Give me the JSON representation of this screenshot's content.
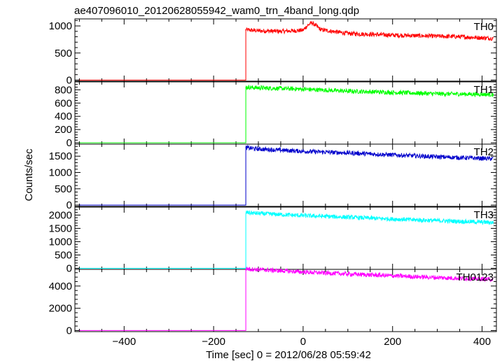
{
  "chart_data": {
    "type": "line",
    "title": "ae407096010_20120628055942_wam0_trn_4band_long.qdp",
    "xlabel": "Time [sec] 0 = 2012/06/28 05:59:42",
    "ylabel": "Counts/sec",
    "xlim": [
      -510,
      432
    ],
    "x_ticks": [
      -400,
      -200,
      0,
      200,
      400
    ],
    "grid": false,
    "onset_time": -128,
    "data_end": 425,
    "panels": [
      {
        "name": "TH0",
        "color": "#ff0000",
        "ylim": [
          -20,
          1130
        ],
        "y_ticks": [
          0,
          500,
          1000
        ],
        "pre_level": 0,
        "points": [
          [
            -510,
            0
          ],
          [
            -129,
            0
          ],
          [
            -128,
            930
          ],
          [
            -100,
            910
          ],
          [
            -50,
            900
          ],
          [
            0,
            920
          ],
          [
            10,
            1010
          ],
          [
            20,
            1060
          ],
          [
            40,
            930
          ],
          [
            100,
            860
          ],
          [
            200,
            830
          ],
          [
            300,
            810
          ],
          [
            350,
            800
          ],
          [
            425,
            770
          ]
        ]
      },
      {
        "name": "TH1",
        "color": "#00ff00",
        "ylim": [
          -20,
          920
        ],
        "y_ticks": [
          0,
          200,
          400,
          600,
          800
        ],
        "pre_level": 0,
        "points": [
          [
            -510,
            0
          ],
          [
            -129,
            0
          ],
          [
            -128,
            840
          ],
          [
            -100,
            830
          ],
          [
            0,
            810
          ],
          [
            100,
            780
          ],
          [
            200,
            760
          ],
          [
            300,
            740
          ],
          [
            425,
            730
          ]
        ]
      },
      {
        "name": "TH2",
        "color": "#0000cc",
        "ylim": [
          -40,
          1870
        ],
        "y_ticks": [
          0,
          500,
          1000,
          1500
        ],
        "pre_level": 0,
        "points": [
          [
            -510,
            0
          ],
          [
            -129,
            0
          ],
          [
            -128,
            1760
          ],
          [
            -100,
            1720
          ],
          [
            0,
            1650
          ],
          [
            100,
            1600
          ],
          [
            200,
            1540
          ],
          [
            300,
            1480
          ],
          [
            425,
            1420
          ]
        ]
      },
      {
        "name": "TH3",
        "color": "#00ffff",
        "ylim": [
          -40,
          2300
        ],
        "y_ticks": [
          0,
          500,
          1000,
          1500,
          2000
        ],
        "pre_level": 0,
        "points": [
          [
            -510,
            0
          ],
          [
            -129,
            0
          ],
          [
            -128,
            2100
          ],
          [
            -100,
            2060
          ],
          [
            0,
            1980
          ],
          [
            100,
            1920
          ],
          [
            200,
            1850
          ],
          [
            300,
            1790
          ],
          [
            425,
            1720
          ]
        ]
      },
      {
        "name": "TH0123",
        "color": "#ff00ff",
        "ylim": [
          -100,
          5500
        ],
        "y_ticks": [
          0,
          2000,
          4000
        ],
        "pre_level": 0,
        "points": [
          [
            -510,
            0
          ],
          [
            -129,
            0
          ],
          [
            -128,
            5550
          ],
          [
            -100,
            5480
          ],
          [
            0,
            5260
          ],
          [
            100,
            5080
          ],
          [
            200,
            4920
          ],
          [
            300,
            4760
          ],
          [
            425,
            4600
          ]
        ]
      }
    ]
  }
}
